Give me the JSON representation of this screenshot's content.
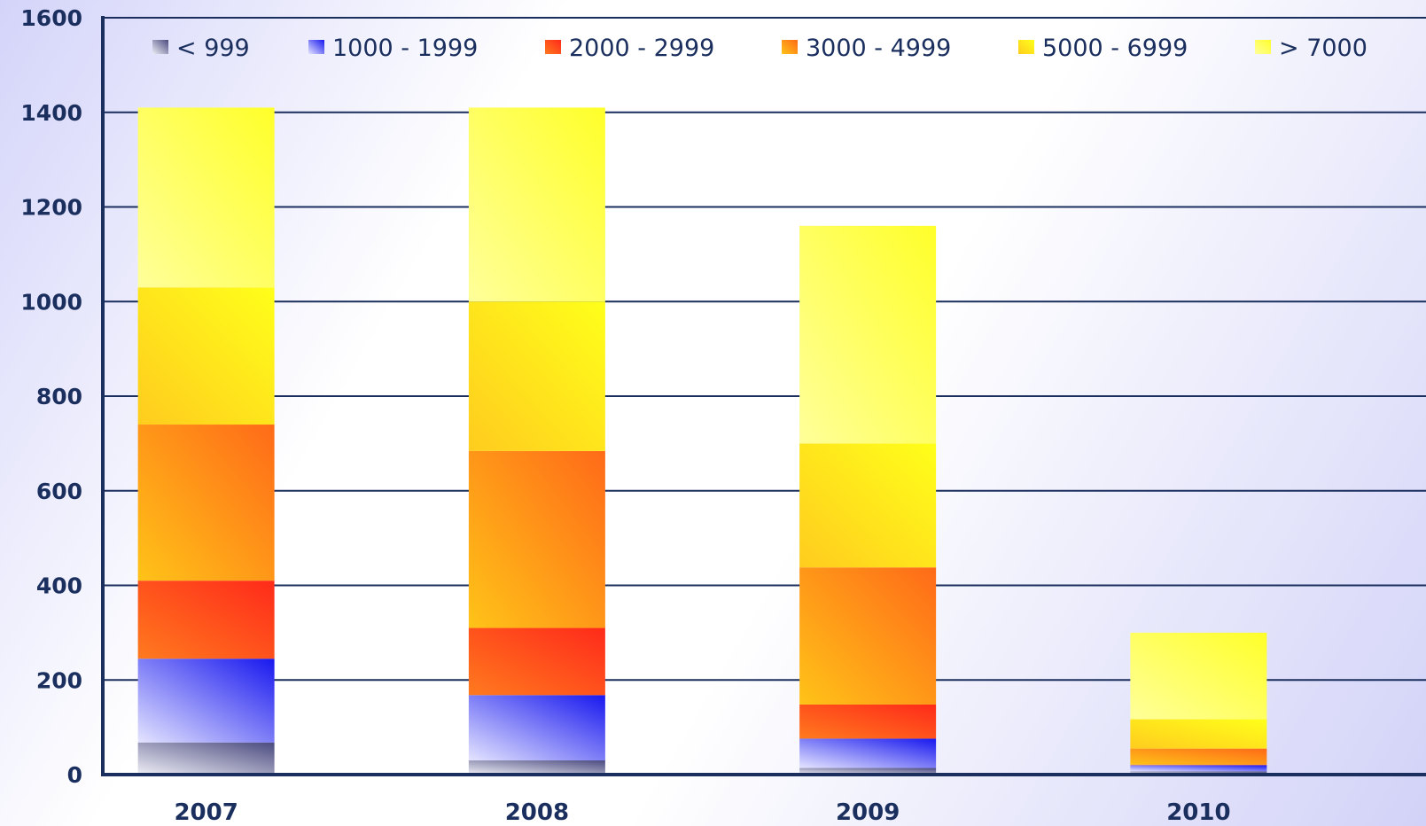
{
  "chart_data": {
    "type": "bar",
    "stacked": true,
    "categories": [
      "2007",
      "2008",
      "2009",
      "2010"
    ],
    "series": [
      {
        "name": "< 999",
        "values": [
          68,
          30,
          14,
          7
        ]
      },
      {
        "name": "1000 - 1999",
        "values": [
          177,
          138,
          62,
          13
        ]
      },
      {
        "name": "2000 - 2999",
        "values": [
          165,
          142,
          72,
          1
        ]
      },
      {
        "name": "3000 - 4999",
        "values": [
          330,
          374,
          290,
          34
        ]
      },
      {
        "name": "5000 - 6999",
        "values": [
          290,
          316,
          262,
          62
        ]
      },
      {
        "name": "> 7000",
        "values": [
          380,
          410,
          460,
          183
        ]
      }
    ],
    "colors": {
      "< 999": [
        "#eeeef6",
        "#4b4b80"
      ],
      "1000 - 1999": [
        "#e4e4ff",
        "#1818ef"
      ],
      "2000 - 2999": [
        "#ff7a1e",
        "#ff2a1a"
      ],
      "3000 - 4999": [
        "#ffc318",
        "#ff6a18"
      ],
      "5000 - 6999": [
        "#ffcc1e",
        "#ffff1a"
      ],
      "> 7000": [
        "#ffff9a",
        "#ffff2a"
      ]
    },
    "yticks": [
      0,
      200,
      400,
      600,
      800,
      1000,
      1200,
      1400,
      1600
    ],
    "ylim": [
      0,
      1600
    ],
    "grid": true,
    "legend_position": "top",
    "axis_color": "#1b2f5e"
  }
}
